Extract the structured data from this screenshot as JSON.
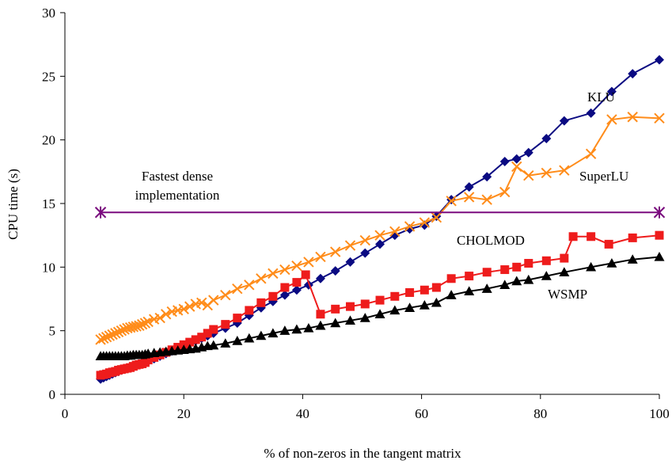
{
  "chart_data": {
    "type": "line",
    "title": "",
    "xlabel": "% of non-zeros in the tangent matrix",
    "ylabel": "CPU time (s)",
    "xlim": [
      0,
      100
    ],
    "ylim": [
      0,
      30
    ],
    "xticks": [
      "0",
      "20",
      "40",
      "60",
      "80",
      "100"
    ],
    "yticks": [
      "0",
      "5",
      "10",
      "15",
      "20",
      "25",
      "30"
    ],
    "grid": false,
    "legend": "none (series labelled inline)",
    "annotation": {
      "line1": "Fastest dense",
      "line2": "implementation"
    },
    "series": [
      {
        "name": "KLU",
        "color": "#0a0a82",
        "marker": "diamond",
        "x": [
          6,
          6.5,
          7,
          7.5,
          8,
          8.5,
          9,
          9.5,
          10,
          10.5,
          11,
          11.5,
          12,
          12.5,
          13,
          13.5,
          14,
          15,
          16,
          17,
          18,
          19,
          20,
          21,
          22,
          23,
          24,
          25,
          27,
          29,
          31,
          33,
          35,
          37,
          39,
          41,
          43,
          45.5,
          48,
          50.5,
          53,
          55.5,
          58,
          60.5,
          62.5,
          65,
          68,
          71,
          74,
          76,
          78,
          81,
          84,
          88.5,
          92,
          95.5,
          100
        ],
        "y": [
          1.2,
          1.3,
          1.4,
          1.5,
          1.6,
          1.7,
          1.8,
          1.9,
          2.0,
          2.05,
          2.1,
          2.2,
          2.3,
          2.35,
          2.4,
          2.5,
          2.6,
          2.8,
          3.0,
          3.2,
          3.4,
          3.6,
          3.8,
          4.0,
          4.2,
          4.4,
          4.6,
          4.8,
          5.2,
          5.6,
          6.2,
          6.8,
          7.3,
          7.8,
          8.2,
          8.6,
          9.1,
          9.7,
          10.4,
          11.1,
          11.8,
          12.5,
          13.0,
          13.3,
          14.0,
          15.3,
          16.3,
          17.1,
          18.3,
          18.5,
          19.0,
          20.1,
          21.5,
          22.1,
          23.8,
          25.2,
          26.3
        ]
      },
      {
        "name": "SuperLU",
        "color": "#ff8c1a",
        "marker": "cross",
        "x": [
          6,
          6.5,
          7,
          7.5,
          8,
          8.5,
          9,
          9.5,
          10,
          10.5,
          11,
          11.5,
          12,
          12.5,
          13,
          13.5,
          14,
          15,
          16,
          17,
          18,
          19,
          20,
          21,
          22,
          23,
          24,
          25,
          27,
          29,
          31,
          33,
          35,
          37,
          39,
          41,
          43,
          45.5,
          48,
          50.5,
          53,
          55.5,
          58,
          60.5,
          62.5,
          65,
          68,
          71,
          74,
          76,
          78,
          81,
          84,
          88.5,
          92,
          95.5,
          100
        ],
        "y": [
          4.3,
          4.4,
          4.5,
          4.6,
          4.7,
          4.8,
          4.9,
          5.0,
          5.1,
          5.2,
          5.25,
          5.3,
          5.35,
          5.4,
          5.5,
          5.6,
          5.7,
          5.9,
          6.0,
          6.3,
          6.5,
          6.6,
          6.7,
          6.9,
          7.1,
          7.2,
          7.0,
          7.4,
          7.8,
          8.3,
          8.6,
          9.1,
          9.5,
          9.8,
          10.1,
          10.4,
          10.8,
          11.2,
          11.7,
          12.1,
          12.5,
          12.8,
          13.2,
          13.5,
          13.9,
          15.2,
          15.5,
          15.3,
          15.9,
          17.9,
          17.2,
          17.4,
          17.6,
          18.9,
          21.6,
          21.8,
          21.7
        ]
      },
      {
        "name": "CHOLMOD",
        "color": "#ee1c1c",
        "marker": "square",
        "x": [
          6,
          6.5,
          7,
          7.5,
          8,
          8.5,
          9,
          9.5,
          10,
          10.5,
          11,
          11.5,
          12,
          12.5,
          13,
          13.5,
          14,
          15,
          16,
          17,
          18,
          19,
          20,
          21,
          22,
          23,
          24,
          25,
          27,
          29,
          31,
          33,
          35,
          37,
          39,
          40.5,
          43,
          45.5,
          48,
          50.5,
          53,
          55.5,
          58,
          60.5,
          62.5,
          65,
          68,
          71,
          74,
          76,
          78,
          81,
          84,
          85.5,
          88.5,
          91.5,
          95.5,
          100
        ],
        "y": [
          1.5,
          1.55,
          1.6,
          1.7,
          1.75,
          1.8,
          1.9,
          1.95,
          2.0,
          2.05,
          2.1,
          2.2,
          2.3,
          2.35,
          2.4,
          2.5,
          2.7,
          2.9,
          3.1,
          3.3,
          3.5,
          3.7,
          3.9,
          4.1,
          4.3,
          4.5,
          4.8,
          5.1,
          5.5,
          6.0,
          6.6,
          7.2,
          7.7,
          8.4,
          8.8,
          9.4,
          6.3,
          6.7,
          6.9,
          7.1,
          7.4,
          7.7,
          8.0,
          8.2,
          8.4,
          9.1,
          9.3,
          9.6,
          9.8,
          10.0,
          10.3,
          10.5,
          10.7,
          12.4,
          12.4,
          11.8,
          12.3,
          12.5
        ]
      },
      {
        "name": "WSMP",
        "color": "#000000",
        "marker": "triangle",
        "x": [
          6,
          6.5,
          7,
          7.5,
          8,
          8.5,
          9,
          9.5,
          10,
          10.5,
          11,
          11.5,
          12,
          12.5,
          13,
          13.5,
          14,
          15,
          16,
          17,
          18,
          19,
          20,
          21,
          22,
          23,
          24,
          25,
          27,
          29,
          31,
          33,
          35,
          37,
          39,
          41,
          43,
          45.5,
          48,
          50.5,
          53,
          55.5,
          58,
          60.5,
          62.5,
          65,
          68,
          71,
          74,
          76,
          78,
          81,
          84,
          88.5,
          92,
          95.5,
          100
        ],
        "y": [
          3.0,
          3.0,
          3.0,
          3.0,
          3.0,
          3.0,
          3.0,
          3.0,
          3.0,
          3.05,
          3.05,
          3.1,
          3.1,
          3.1,
          3.1,
          3.15,
          3.2,
          3.25,
          3.3,
          3.35,
          3.4,
          3.45,
          3.5,
          3.55,
          3.6,
          3.7,
          3.8,
          3.85,
          4.0,
          4.2,
          4.4,
          4.6,
          4.8,
          5.0,
          5.1,
          5.2,
          5.4,
          5.6,
          5.8,
          6.0,
          6.3,
          6.6,
          6.8,
          7.0,
          7.2,
          7.8,
          8.1,
          8.3,
          8.6,
          8.9,
          9.0,
          9.3,
          9.6,
          10.0,
          10.3,
          10.6,
          10.8
        ]
      },
      {
        "name": "",
        "color": "#7a0a7e",
        "marker": "star",
        "x": [
          6,
          100
        ],
        "y": [
          14.3,
          14.3
        ]
      }
    ]
  }
}
